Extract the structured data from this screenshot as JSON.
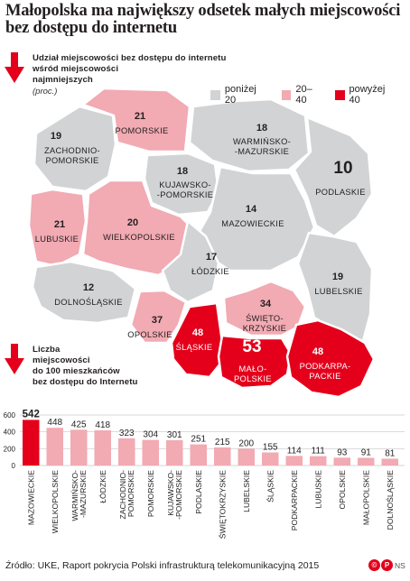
{
  "title": "Małopolska ma największy odsetek małych miejscowości bez dostępu do internetu",
  "map_section": {
    "heading_lines": [
      "Udział miejscowości bez dostępu do internetu",
      "wśród miejscowości",
      "najmniejszych"
    ],
    "unit": "(proc.)"
  },
  "legend": [
    {
      "label": "poniżej 20",
      "color": "#d1d3d4"
    },
    {
      "label": "20–40",
      "color": "#f2aab3"
    },
    {
      "label": "powyżej 40",
      "color": "#e4001b"
    }
  ],
  "regions": [
    {
      "id": "zachodniopomorskie",
      "value": "19",
      "name_lines": [
        "ZACHODNIO-",
        "POMORSKIE"
      ],
      "category": "poniżej 20"
    },
    {
      "id": "pomorskie",
      "value": "21",
      "name_lines": [
        "POMORSKIE"
      ],
      "category": "20–40"
    },
    {
      "id": "warminsko-mazurskie",
      "value": "18",
      "name_lines": [
        "WARMIŃSKO-",
        "-MAZURSKIE"
      ],
      "category": "poniżej 20"
    },
    {
      "id": "podlaskie",
      "value": "10",
      "name_lines": [
        "PODLASKIE"
      ],
      "category": "poniżej 20"
    },
    {
      "id": "kujawsko-pomorskie",
      "value": "18",
      "name_lines": [
        "KUJAWSKO-",
        "-POMORSKIE"
      ],
      "category": "poniżej 20"
    },
    {
      "id": "lubuskie",
      "value": "21",
      "name_lines": [
        "LUBUSKIE"
      ],
      "category": "20–40"
    },
    {
      "id": "wielkopolskie",
      "value": "20",
      "name_lines": [
        "WIELKOPOLSKIE"
      ],
      "category": "20–40"
    },
    {
      "id": "mazowieckie",
      "value": "14",
      "name_lines": [
        "MAZOWIECKIE"
      ],
      "category": "poniżej 20"
    },
    {
      "id": "lodzkie",
      "value": "17",
      "name_lines": [
        "ŁÓDZKIE"
      ],
      "category": "poniżej 20"
    },
    {
      "id": "dolnoslaskie",
      "value": "12",
      "name_lines": [
        "DOLNOŚLĄSKIE"
      ],
      "category": "poniżej 20"
    },
    {
      "id": "lubelskie",
      "value": "19",
      "name_lines": [
        "LUBELSKIE"
      ],
      "category": "poniżej 20"
    },
    {
      "id": "opolskie",
      "value": "37",
      "name_lines": [
        "OPOLSKIE"
      ],
      "category": "20–40"
    },
    {
      "id": "slaskie",
      "value": "48",
      "name_lines": [
        "ŚLĄSKIE"
      ],
      "category": "powyżej 40"
    },
    {
      "id": "swietokrzyskie",
      "value": "34",
      "name_lines": [
        "ŚWIĘTO-",
        "KRZYSKIE"
      ],
      "category": "20–40"
    },
    {
      "id": "malopolskie",
      "value": "53",
      "name_lines": [
        "MAŁO-",
        "POLSKIE"
      ],
      "category": "powyżej 40"
    },
    {
      "id": "podkarpackie",
      "value": "48",
      "name_lines": [
        "PODKARPA-",
        "PACKIE"
      ],
      "category": "powyżej 40"
    }
  ],
  "bar_section": {
    "heading_lines": [
      "Liczba",
      "miejscowości",
      "do 100 mieszkańców",
      "bez dostępu do Internetu"
    ]
  },
  "chart_data": {
    "type": "bar",
    "title": "Liczba miejscowości do 100 mieszkańców bez dostępu do Internetu",
    "categories": [
      "MAZOWIECKIE",
      "WIELKOPOLSKIE",
      "WARMIŃSKO-MAZURSKIE",
      "ŁÓDZKIE",
      "ZACHODNIO-POMORSKIE",
      "POMORSKIE",
      "KUJAWSKO-POMORSKIE",
      "PODLASKIE",
      "ŚWIĘTOKRZYSKIE",
      "LUBELSKIE",
      "ŚLĄSKIE",
      "PODKARPACKIE",
      "LUBUSKIE",
      "OPOLSKIE",
      "MAŁOPOLSKIE",
      "DOLNOŚLĄSKIE"
    ],
    "category_lines": [
      [
        "MAZOWIECKIE"
      ],
      [
        "WIELKOPOLSKIE"
      ],
      [
        "WARMIŃSKO-",
        "-MAZURSKIE"
      ],
      [
        "ŁÓDZKIE"
      ],
      [
        "ZACHODNIO-",
        "POMORSKIE"
      ],
      [
        "POMORSKIE"
      ],
      [
        "KUJAWSKO-",
        "-POMORSKIE"
      ],
      [
        "PODLASKIE"
      ],
      [
        "ŚWIĘTOKRZYSKIE"
      ],
      [
        "LUBELSKIE"
      ],
      [
        "ŚLĄSKIE"
      ],
      [
        "PODKARPACKIE"
      ],
      [
        "LUBUSKIE"
      ],
      [
        "OPOLSKIE"
      ],
      [
        "MAŁOPOLSKIE"
      ],
      [
        "DOLNOŚLĄSKIE"
      ]
    ],
    "values": [
      542,
      448,
      425,
      418,
      323,
      304,
      301,
      251,
      215,
      200,
      155,
      114,
      111,
      93,
      91,
      81
    ],
    "yticks": [
      0,
      200,
      400,
      600
    ],
    "ylim": [
      0,
      600
    ],
    "grid": true,
    "colors": {
      "highlight": "#e4001b",
      "default": "#f2aab3"
    }
  },
  "footer": {
    "source": "Źródło: UKE, Raport pokrycia Polski infrastrukturą telekomunikacyjną 2015",
    "logo_marks": [
      "©",
      "P"
    ],
    "credit": "NS"
  }
}
